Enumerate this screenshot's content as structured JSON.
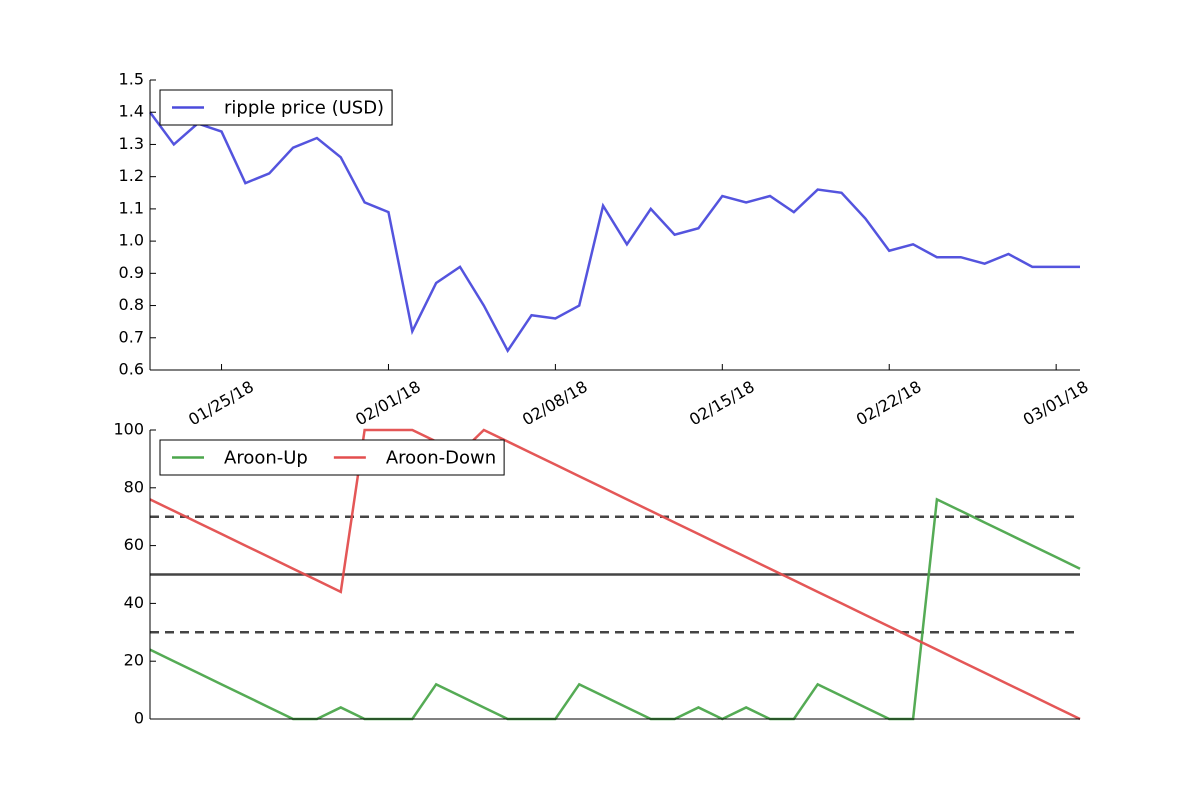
{
  "chart_data": [
    {
      "type": "line",
      "x": [
        "01/22/18",
        "01/23/18",
        "01/24/18",
        "01/25/18",
        "01/26/18",
        "01/27/18",
        "01/28/18",
        "01/29/18",
        "01/30/18",
        "01/31/18",
        "02/01/18",
        "02/02/18",
        "02/03/18",
        "02/04/18",
        "02/05/18",
        "02/06/18",
        "02/07/18",
        "02/08/18",
        "02/09/18",
        "02/10/18",
        "02/11/18",
        "02/12/18",
        "02/13/18",
        "02/14/18",
        "02/15/18",
        "02/16/18",
        "02/17/18",
        "02/18/18",
        "02/19/18",
        "02/20/18",
        "02/21/18",
        "02/22/18",
        "02/23/18",
        "02/24/18",
        "02/25/18",
        "02/26/18",
        "02/27/18",
        "02/28/18",
        "03/01/18",
        "03/02/18"
      ],
      "series": [
        {
          "name": "ripple price (USD)",
          "color": "#4b4bdc",
          "values": [
            1.4,
            1.3,
            1.365,
            1.34,
            1.18,
            1.21,
            1.29,
            1.32,
            1.26,
            1.12,
            1.09,
            0.72,
            0.87,
            0.92,
            0.8,
            0.66,
            0.77,
            0.76,
            0.8,
            1.11,
            0.99,
            1.1,
            1.02,
            1.04,
            1.14,
            1.12,
            1.14,
            1.09,
            1.16,
            1.15,
            1.07,
            0.97,
            0.99,
            0.95,
            0.95,
            0.93,
            0.96,
            0.92,
            0.92,
            0.92
          ]
        }
      ],
      "xlim": [
        "01/22/18",
        "03/02/18"
      ],
      "xticks": [
        "01/25/18",
        "02/01/18",
        "02/08/18",
        "02/15/18",
        "02/22/18",
        "03/01/18"
      ],
      "ylim": [
        0.6,
        1.5
      ],
      "yticks": [
        0.6,
        0.7,
        0.8,
        0.9,
        {
          "value": 1.0,
          "label": "1.0"
        },
        1.1,
        1.2,
        1.3,
        1.4,
        1.5
      ],
      "legend": "upper left"
    },
    {
      "type": "line",
      "x": [
        "01/22/18",
        "01/23/18",
        "01/24/18",
        "01/25/18",
        "01/26/18",
        "01/27/18",
        "01/28/18",
        "01/29/18",
        "01/30/18",
        "01/31/18",
        "02/01/18",
        "02/02/18",
        "02/03/18",
        "02/04/18",
        "02/05/18",
        "02/06/18",
        "02/07/18",
        "02/08/18",
        "02/09/18",
        "02/10/18",
        "02/11/18",
        "02/12/18",
        "02/13/18",
        "02/14/18",
        "02/15/18",
        "02/16/18",
        "02/17/18",
        "02/18/18",
        "02/19/18",
        "02/20/18",
        "02/21/18",
        "02/22/18",
        "02/23/18",
        "02/24/18",
        "02/25/18",
        "02/26/18",
        "02/27/18",
        "02/28/18",
        "03/01/18",
        "03/02/18"
      ],
      "series": [
        {
          "name": "Aroon-Up",
          "color": "#4ca64c",
          "values": [
            24,
            20,
            16,
            12,
            8,
            4,
            0,
            0,
            4,
            0,
            0,
            0,
            12,
            8,
            4,
            0,
            0,
            0,
            12,
            8,
            4,
            0,
            0,
            4,
            0,
            4,
            0,
            0,
            12,
            8,
            4,
            0,
            0,
            76,
            72,
            68,
            64,
            60,
            56,
            52
          ]
        },
        {
          "name": "Aroon-Down",
          "color": "#e34e4e",
          "values": [
            76,
            72,
            68,
            64,
            60,
            56,
            52,
            48,
            44,
            100,
            100,
            100,
            96,
            92,
            100,
            96,
            92,
            88,
            84,
            80,
            76,
            72,
            68,
            64,
            60,
            56,
            52,
            48,
            44,
            40,
            36,
            32,
            28,
            24,
            20,
            16,
            12,
            8,
            4,
            0
          ]
        }
      ],
      "reference_lines": [
        {
          "value": 70,
          "style": "dashed"
        },
        {
          "value": 50,
          "style": "solid"
        },
        {
          "value": 30,
          "style": "dashed"
        }
      ],
      "xlim": [
        "01/22/18",
        "03/02/18"
      ],
      "ylim": [
        0,
        100
      ],
      "yticks": [
        0,
        20,
        40,
        60,
        80,
        100
      ],
      "legend": "upper left"
    }
  ]
}
